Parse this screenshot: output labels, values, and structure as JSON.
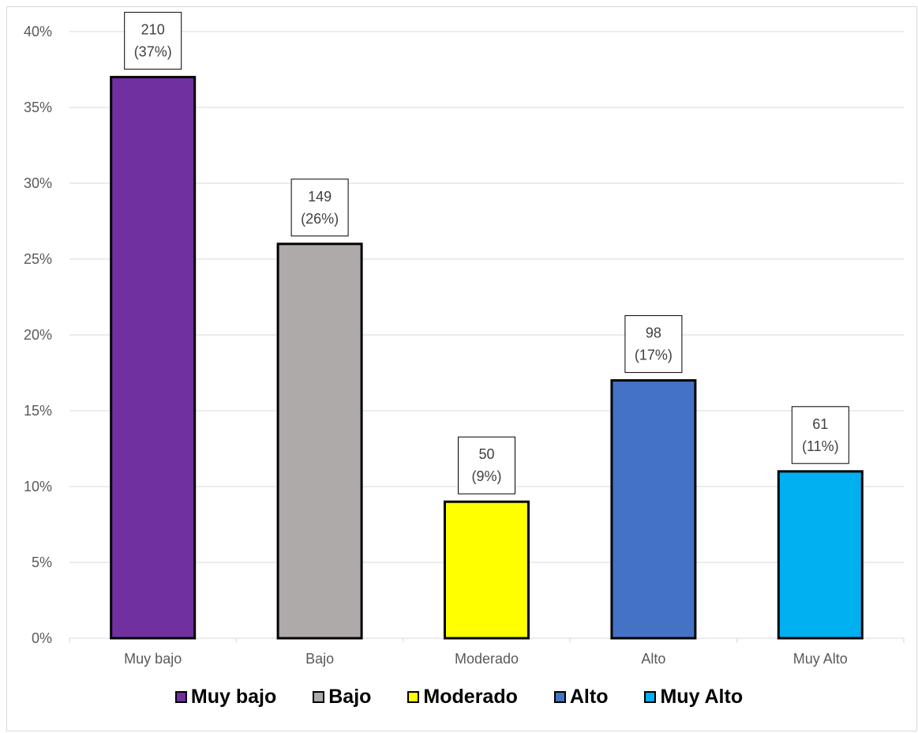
{
  "chart_data": {
    "type": "bar",
    "title": "",
    "xlabel": "",
    "ylabel": "",
    "categories": [
      "Muy bajo",
      "Bajo",
      "Moderado",
      "Alto",
      "Muy Alto"
    ],
    "values": [
      37,
      26,
      9,
      17,
      11
    ],
    "counts": [
      210,
      149,
      50,
      98,
      61
    ],
    "data_labels": [
      [
        "210",
        "(37%)"
      ],
      [
        "149",
        "(26%)"
      ],
      [
        "50",
        "(9%)"
      ],
      [
        "98",
        "(17%)"
      ],
      [
        "61",
        "(11%)"
      ]
    ],
    "colors": [
      "#7030a0",
      "#aeaaaa",
      "#ffff00",
      "#4472c4",
      "#00b0f0"
    ],
    "ylim": [
      0,
      40
    ],
    "yticks": [
      "0%",
      "5%",
      "10%",
      "15%",
      "20%",
      "25%",
      "30%",
      "35%",
      "40%"
    ],
    "grid": true,
    "legend_position": "bottom"
  },
  "legend": {
    "items": [
      "Muy bajo",
      "Bajo",
      "Moderado",
      "Alto",
      "Muy Alto"
    ]
  }
}
